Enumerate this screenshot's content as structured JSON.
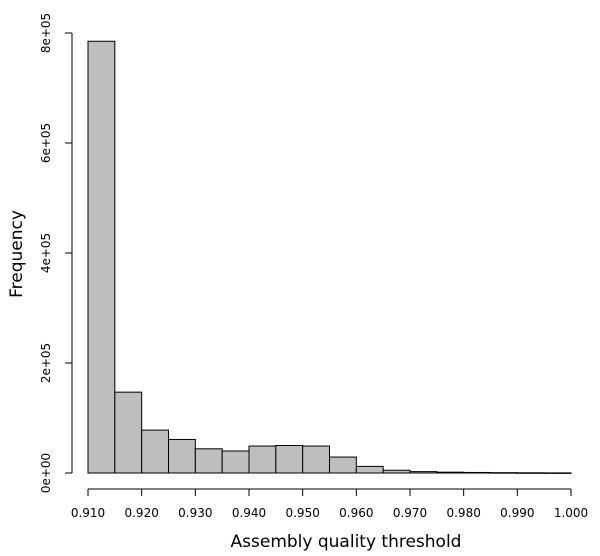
{
  "chart_data": {
    "type": "bar",
    "xlabel": "Assembly quality threshold",
    "ylabel": "Frequency",
    "x_ticks": [
      "0.910",
      "0.920",
      "0.930",
      "0.940",
      "0.950",
      "0.960",
      "0.970",
      "0.980",
      "0.990",
      "1.000"
    ],
    "y_ticks": [
      "0e+00",
      "2e+05",
      "4e+05",
      "6e+05",
      "8e+05"
    ],
    "xlim": [
      0.91,
      1.0
    ],
    "ylim": [
      0,
      800000
    ],
    "bin_width": 0.005,
    "bins_start": [
      0.91,
      0.915,
      0.92,
      0.925,
      0.93,
      0.935,
      0.94,
      0.945,
      0.95,
      0.955,
      0.96,
      0.965,
      0.97,
      0.975,
      0.98,
      0.985,
      0.99,
      0.995
    ],
    "values": [
      785000,
      147000,
      78000,
      61000,
      44000,
      40000,
      49000,
      50000,
      49000,
      29000,
      12000,
      5000,
      2500,
      1500,
      1000,
      600,
      400,
      200
    ],
    "bar_color": "#bebebe"
  }
}
